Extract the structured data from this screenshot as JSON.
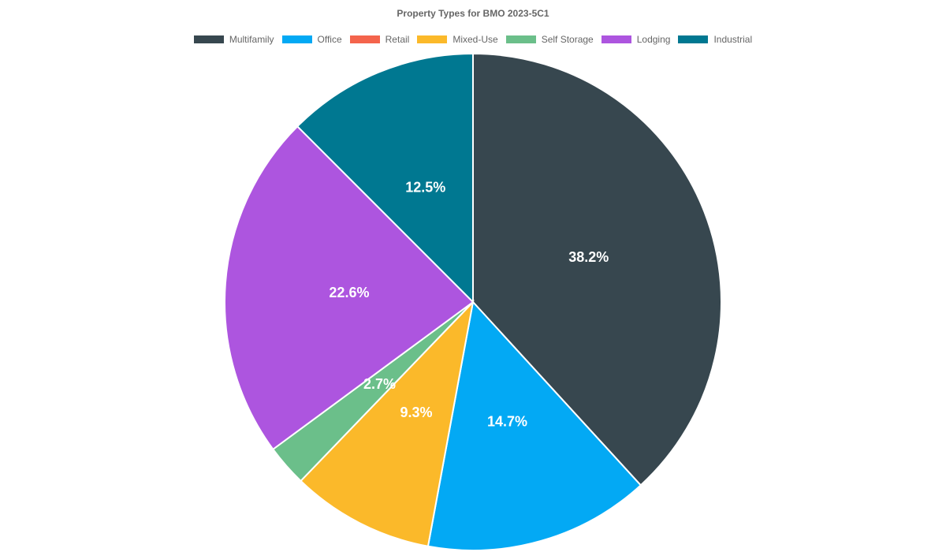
{
  "chart_data": {
    "type": "pie",
    "title": "Property Types for BMO 2023-5C1",
    "legend_position": "top",
    "categories": [
      "Multifamily",
      "Office",
      "Retail",
      "Mixed-Use",
      "Self Storage",
      "Lodging",
      "Industrial"
    ],
    "values": [
      38.2,
      14.7,
      0.0,
      9.3,
      2.7,
      22.6,
      12.5
    ],
    "labels": [
      "38.2%",
      "14.7%",
      "",
      "9.3%",
      "2.7%",
      "22.6%",
      "12.5%"
    ],
    "colors": [
      "#37474F",
      "#03A9F4",
      "#F4644C",
      "#FBB92A",
      "#6BBF8A",
      "#AD55DF",
      "#007891"
    ]
  }
}
